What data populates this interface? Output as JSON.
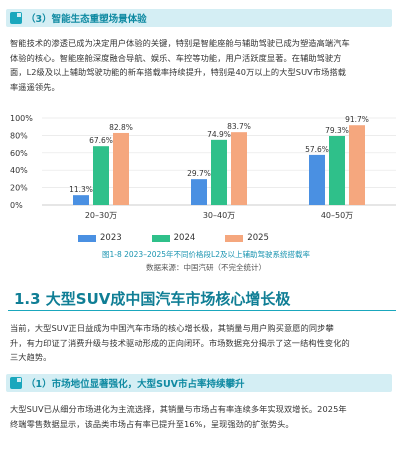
{
  "subsection1": {
    "title": "（3）智能生态重塑场景体验"
  },
  "para1": {
    "lines": [
      "智能技术的渗透已成为决定用户体验的关键，特别是智能座舱与辅助驾驶已成为塑造高端汽车",
      "体验的核心。智能座舱深度融合导航、娱乐、车控等功能，用户活跃度显著。在辅助驾驶方",
      "面，L2级及以上辅助驾驶功能的新车搭载率持续提升，特别是40万以上的大型SUV市场搭载",
      "率遥遥领先。"
    ]
  },
  "chart_data": {
    "type": "bar",
    "categories": [
      "20–30万",
      "30–40万",
      "40–50万"
    ],
    "series": [
      {
        "name": "2023",
        "values": [
          11.3,
          29.7,
          57.6
        ],
        "labels": [
          "11.3%",
          "29.7%",
          "57.6%"
        ],
        "color": "#4a90e2"
      },
      {
        "name": "2024",
        "values": [
          67.6,
          74.9,
          79.3
        ],
        "labels": [
          "67.6%",
          "74.9%",
          "79.3%"
        ],
        "color": "#2fc08a"
      },
      {
        "name": "2025",
        "values": [
          82.8,
          83.7,
          91.7
        ],
        "labels": [
          "82.8%",
          "83.7%",
          "91.7%"
        ],
        "color": "#f5a77e"
      }
    ],
    "yticks": [
      "100%",
      "80%",
      "60%",
      "40%",
      "20%",
      "0%"
    ],
    "ylim": [
      0,
      100
    ],
    "title": "图1-8 2023–2025年不同价格段L2及以上辅助驾驶系统搭载率",
    "source": "数据来源：中国汽研（不完全统计）"
  },
  "section": {
    "title": "1.3 大型SUV成中国汽车市场核心增长极"
  },
  "para2": {
    "lines": [
      "当前，大型SUV正日益成为中国汽车市场的核心增长极，其销量与用户购买意愿的同步攀",
      "升，有力印证了消费升级与技术驱动形成的正向闭环。市场数据充分揭示了这一结构性变化的",
      "三大趋势。"
    ]
  },
  "subsection2": {
    "title": "（1）市场地位显著强化，大型SUV市占率持续攀升"
  },
  "para3": {
    "lines": [
      "大型SUV已从细分市场进化为主流选择，其销量与市场占有率连续多年实现双增长。2025年",
      "终端零售数据显示，该品类市场占有率已提升至16%，呈现强劲的扩张势头。"
    ]
  }
}
